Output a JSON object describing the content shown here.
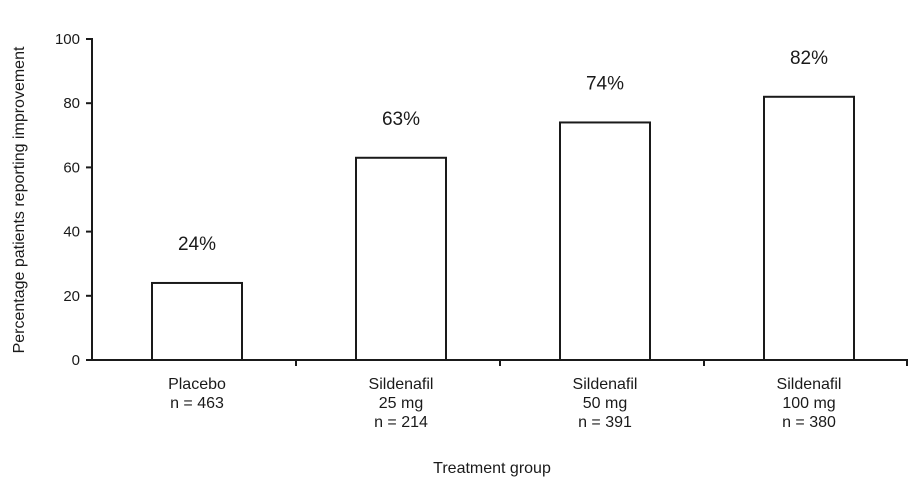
{
  "chart_data": {
    "type": "bar",
    "title": "",
    "xlabel": "Treatment group",
    "ylabel": "Percentage patients reporting improvement",
    "ylim": [
      0,
      100
    ],
    "yticks": [
      "0",
      "20",
      "40",
      "60",
      "80",
      "100"
    ],
    "categories": [
      [
        "Placebo",
        "n = 463"
      ],
      [
        "Sildenafil",
        "25 mg",
        "n = 214"
      ],
      [
        "Sildenafil",
        "50 mg",
        "n = 391"
      ],
      [
        "Sildenafil",
        "100 mg",
        "n = 380"
      ]
    ],
    "values": [
      24,
      63,
      74,
      82
    ],
    "data_labels": [
      "24%",
      "63%",
      "74%",
      "82%"
    ],
    "bar_fill": "#ffffff",
    "bar_stroke": "#1a1a1a",
    "grid": false
  }
}
